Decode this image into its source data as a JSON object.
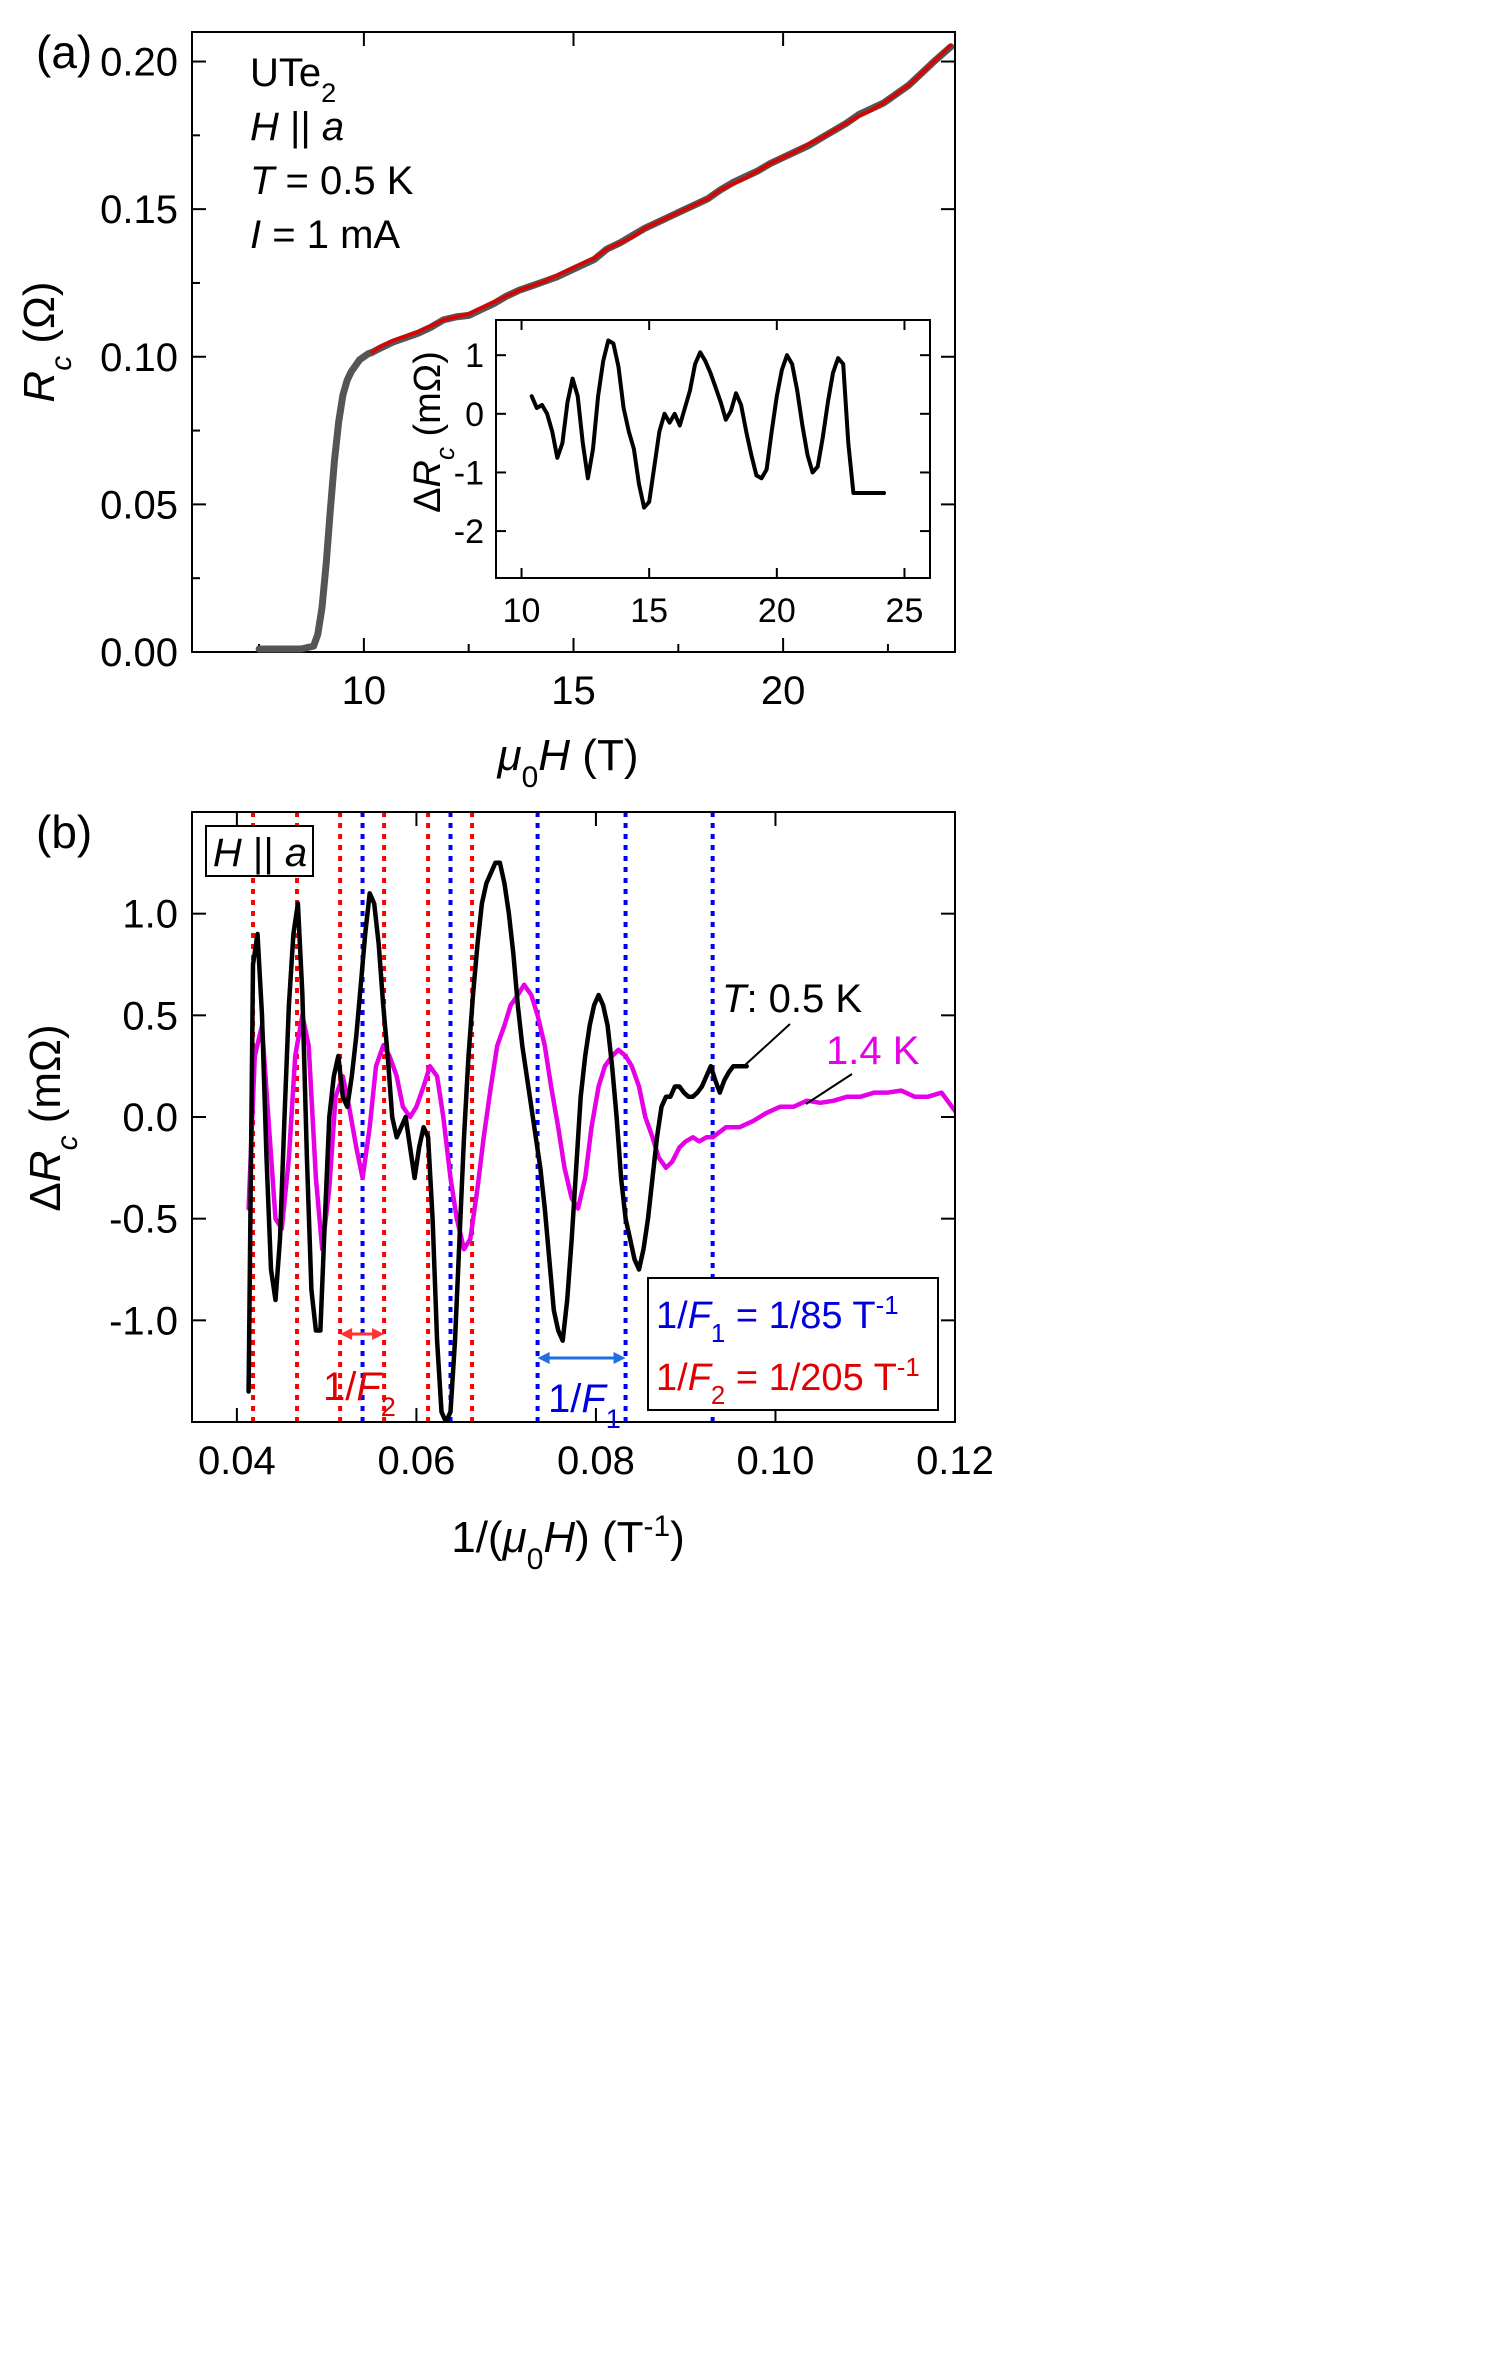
{
  "chart_data": [
    {
      "panel": "(a)",
      "type": "line",
      "xlabel": "μ0H (T)",
      "ylabel": "Rc (Ω)",
      "xlim": [
        5.9,
        24.1
      ],
      "ylim": [
        0.0,
        0.21
      ],
      "xticks": [
        "10",
        "15",
        "20"
      ],
      "yticks": [
        "0.00",
        "0.05",
        "0.10",
        "0.15",
        "0.20"
      ],
      "annotations": [
        "UTe2",
        "H || a",
        "T = 0.5 K",
        "I = 1 mA"
      ],
      "series": [
        {
          "color": "#555555",
          "x": [
            7.5,
            8.0,
            8.5,
            8.8,
            8.9,
            9.0,
            9.1,
            9.2,
            9.3,
            9.4,
            9.5,
            9.6,
            9.7,
            9.8,
            9.9,
            10.0,
            10.1,
            10.2,
            10.4,
            10.7,
            11.0,
            11.3,
            11.6,
            11.9,
            12.2,
            12.5,
            12.8,
            13.1,
            13.4,
            13.7,
            14.0,
            14.3,
            14.6,
            14.9,
            15.2,
            15.5,
            15.8,
            16.1,
            16.4,
            16.7,
            17.0,
            17.3,
            17.6,
            17.9,
            18.2,
            18.5,
            18.8,
            19.1,
            19.4,
            19.7,
            20.0,
            20.3,
            20.6,
            20.9,
            21.2,
            21.5,
            21.8,
            22.1,
            22.4,
            22.7,
            23.0,
            23.3,
            23.6,
            24.0
          ],
          "y": [
            0.001,
            0.001,
            0.001,
            0.002,
            0.006,
            0.015,
            0.03,
            0.048,
            0.065,
            0.078,
            0.087,
            0.092,
            0.095,
            0.097,
            0.099,
            0.1,
            0.101,
            0.1015,
            0.103,
            0.105,
            0.1065,
            0.108,
            0.11,
            0.1125,
            0.1135,
            0.114,
            0.116,
            0.118,
            0.1205,
            0.1225,
            0.124,
            0.1255,
            0.127,
            0.129,
            0.131,
            0.133,
            0.1365,
            0.1385,
            0.141,
            0.1435,
            0.1455,
            0.1475,
            0.1495,
            0.1515,
            0.1535,
            0.1565,
            0.159,
            0.161,
            0.163,
            0.1655,
            0.1675,
            0.1695,
            0.1715,
            0.174,
            0.1765,
            0.179,
            0.182,
            0.184,
            0.186,
            0.189,
            0.192,
            0.196,
            0.2,
            0.205
          ]
        },
        {
          "color": "#e00000",
          "x": [
            10.2,
            10.4,
            10.7,
            11.0,
            11.3,
            11.6,
            11.9,
            12.2,
            12.5,
            12.8,
            13.1,
            13.4,
            13.7,
            14.0,
            14.3,
            14.6,
            14.9,
            15.2,
            15.5,
            15.8,
            16.1,
            16.4,
            16.7,
            17.0,
            17.3,
            17.6,
            17.9,
            18.2,
            18.5,
            18.8,
            19.1,
            19.4,
            19.7,
            20.0,
            20.3,
            20.6,
            20.9,
            21.2,
            21.5,
            21.8,
            22.1,
            22.4,
            22.7,
            23.0,
            23.3,
            23.6,
            24.0
          ],
          "y": [
            0.1015,
            0.1035,
            0.1055,
            0.107,
            0.1085,
            0.1105,
            0.1125,
            0.1135,
            0.1145,
            0.1165,
            0.1185,
            0.1205,
            0.1225,
            0.124,
            0.1255,
            0.1275,
            0.1295,
            0.1315,
            0.1335,
            0.1365,
            0.1385,
            0.1405,
            0.1435,
            0.1455,
            0.1475,
            0.1495,
            0.1515,
            0.1535,
            0.1565,
            0.1585,
            0.1605,
            0.163,
            0.1655,
            0.1675,
            0.1695,
            0.172,
            0.174,
            0.1765,
            0.179,
            0.1815,
            0.1835,
            0.186,
            0.189,
            0.192,
            0.196,
            0.2,
            0.2055
          ]
        }
      ],
      "inset": {
        "xlabel": "ΔRc (mΩ)",
        "xlim": [
          9,
          26
        ],
        "ylim": [
          -2.8,
          1.6
        ],
        "xticks": [
          "10",
          "15",
          "20",
          "25"
        ],
        "yticks": [
          "-2",
          "-1",
          "0",
          "1"
        ],
        "color": "#000000",
        "x": [
          10.4,
          10.6,
          10.8,
          11.0,
          11.2,
          11.4,
          11.6,
          11.8,
          12.0,
          12.2,
          12.4,
          12.6,
          12.8,
          13.0,
          13.2,
          13.4,
          13.6,
          13.8,
          14.0,
          14.2,
          14.4,
          14.6,
          14.8,
          15.0,
          15.2,
          15.4,
          15.6,
          15.8,
          16.0,
          16.2,
          16.4,
          16.6,
          16.8,
          17.0,
          17.2,
          17.4,
          17.6,
          17.8,
          18.0,
          18.2,
          18.4,
          18.6,
          18.8,
          19.0,
          19.2,
          19.4,
          19.6,
          19.8,
          20.0,
          20.2,
          20.4,
          20.6,
          20.8,
          21.0,
          21.2,
          21.4,
          21.6,
          21.8,
          22.0,
          22.2,
          22.4,
          22.6,
          22.8,
          23.0,
          23.2,
          23.4,
          23.6,
          23.8,
          24.0,
          24.2
        ],
        "y": [
          0.3,
          0.1,
          0.15,
          0.0,
          -0.3,
          -0.75,
          -0.5,
          0.2,
          0.6,
          0.3,
          -0.5,
          -1.1,
          -0.6,
          0.3,
          0.9,
          1.25,
          1.2,
          0.8,
          0.1,
          -0.3,
          -0.6,
          -1.2,
          -1.6,
          -1.5,
          -0.9,
          -0.3,
          0.0,
          -0.15,
          0.0,
          -0.2,
          0.1,
          0.4,
          0.85,
          1.05,
          0.9,
          0.7,
          0.45,
          0.2,
          -0.1,
          0.05,
          0.35,
          0.15,
          -0.3,
          -0.7,
          -1.05,
          -1.1,
          -0.95,
          -0.3,
          0.3,
          0.75,
          1.0,
          0.85,
          0.4,
          -0.2,
          -0.7,
          -1.0,
          -0.9,
          -0.4,
          0.2,
          0.7,
          0.95,
          0.85,
          -0.5,
          -1.35,
          -1.35,
          -1.35,
          -1.35,
          -1.35,
          -1.35,
          -1.35
        ]
      }
    },
    {
      "panel": "(b)",
      "type": "line",
      "xlabel": "1/(μ0H) (T-1)",
      "ylabel": "ΔRc (mΩ)",
      "xlim": [
        0.035,
        0.12
      ],
      "ylim": [
        -1.5,
        1.5
      ],
      "xticks": [
        "0.04",
        "0.06",
        "0.08",
        "0.10",
        "0.12"
      ],
      "yticks": [
        "-1.0",
        "-0.5",
        "0.0",
        "0.5",
        "1.0"
      ],
      "box_label": "H || a",
      "series_labels": [
        "T: 0.5 K",
        "1.4 K"
      ],
      "legend": [
        "1/F1 = 1/85 T-1",
        "1/F2 = 1/205 T-1"
      ],
      "bracket_labels": [
        "1/F2",
        "1/F1"
      ],
      "red_lines": [
        0.0418,
        0.0467,
        0.0515,
        0.0564,
        0.0613,
        0.0662
      ],
      "blue_lines": [
        0.054,
        0.0638,
        0.0735,
        0.0833,
        0.093
      ],
      "series": [
        {
          "name": "T: 0.5 K",
          "color": "#000000",
          "x": [
            0.0413,
            0.0418,
            0.0423,
            0.0428,
            0.0433,
            0.0438,
            0.0443,
            0.0448,
            0.0453,
            0.0458,
            0.0463,
            0.0468,
            0.0473,
            0.0478,
            0.0483,
            0.0488,
            0.0493,
            0.0498,
            0.0503,
            0.0508,
            0.0513,
            0.0518,
            0.0523,
            0.0528,
            0.0533,
            0.0538,
            0.0543,
            0.0548,
            0.0553,
            0.0558,
            0.0563,
            0.0568,
            0.0573,
            0.0578,
            0.0583,
            0.0588,
            0.0593,
            0.0598,
            0.0603,
            0.0608,
            0.0613,
            0.0618,
            0.0623,
            0.0628,
            0.0633,
            0.0638,
            0.0643,
            0.0648,
            0.0653,
            0.0658,
            0.0663,
            0.0668,
            0.0673,
            0.0678,
            0.0683,
            0.0688,
            0.0693,
            0.0698,
            0.0703,
            0.0708,
            0.0713,
            0.0718,
            0.0723,
            0.0728,
            0.0733,
            0.0738,
            0.0743,
            0.0748,
            0.0753,
            0.0758,
            0.0763,
            0.0768,
            0.0773,
            0.0778,
            0.0783,
            0.0788,
            0.0793,
            0.0798,
            0.0803,
            0.0808,
            0.0813,
            0.0818,
            0.0823,
            0.0828,
            0.0833,
            0.0838,
            0.0843,
            0.0848,
            0.0853,
            0.0858,
            0.0863,
            0.0868,
            0.0873,
            0.0878,
            0.0883,
            0.0888,
            0.0893,
            0.0898,
            0.0903,
            0.0908,
            0.0913,
            0.0918,
            0.0923,
            0.0928,
            0.0933,
            0.0938,
            0.0943,
            0.0948,
            0.0953,
            0.0958,
            0.0963,
            0.0968
          ],
          "y": [
            -1.35,
            0.75,
            0.9,
            0.5,
            -0.2,
            -0.75,
            -0.9,
            -0.6,
            0.0,
            0.55,
            0.9,
            1.05,
            0.6,
            -0.2,
            -0.85,
            -1.05,
            -1.05,
            -0.5,
            0.0,
            0.2,
            0.3,
            0.1,
            0.05,
            0.2,
            0.4,
            0.65,
            0.9,
            1.1,
            1.05,
            0.85,
            0.55,
            0.3,
            0.0,
            -0.1,
            -0.05,
            0.0,
            -0.15,
            -0.3,
            -0.15,
            -0.05,
            -0.1,
            -0.5,
            -1.1,
            -1.45,
            -1.5,
            -1.45,
            -1.1,
            -0.6,
            -0.1,
            0.3,
            0.6,
            0.85,
            1.05,
            1.15,
            1.2,
            1.25,
            1.25,
            1.15,
            1.0,
            0.8,
            0.55,
            0.35,
            0.2,
            0.05,
            -0.1,
            -0.25,
            -0.45,
            -0.7,
            -0.95,
            -1.05,
            -1.1,
            -0.9,
            -0.6,
            -0.25,
            0.1,
            0.3,
            0.45,
            0.55,
            0.6,
            0.55,
            0.45,
            0.25,
            0.0,
            -0.3,
            -0.5,
            -0.6,
            -0.7,
            -0.75,
            -0.65,
            -0.5,
            -0.3,
            -0.1,
            0.05,
            0.1,
            0.1,
            0.15,
            0.15,
            0.12,
            0.1,
            0.1,
            0.12,
            0.15,
            0.2,
            0.25,
            0.18,
            0.12,
            0.18,
            0.22,
            0.25,
            0.25,
            0.25,
            0.25
          ]
        },
        {
          "name": "1.4 K",
          "color": "#e600e6",
          "x": [
            0.0413,
            0.042,
            0.0428,
            0.0435,
            0.0443,
            0.045,
            0.0458,
            0.0465,
            0.0473,
            0.048,
            0.0488,
            0.0495,
            0.0503,
            0.051,
            0.0518,
            0.0525,
            0.0533,
            0.054,
            0.0548,
            0.0555,
            0.0563,
            0.057,
            0.0578,
            0.0585,
            0.0593,
            0.06,
            0.0608,
            0.0615,
            0.0623,
            0.063,
            0.0638,
            0.0645,
            0.0653,
            0.066,
            0.0668,
            0.0675,
            0.0683,
            0.069,
            0.0698,
            0.0705,
            0.0713,
            0.072,
            0.0728,
            0.0735,
            0.0743,
            0.075,
            0.0758,
            0.0765,
            0.0773,
            0.078,
            0.0788,
            0.0795,
            0.0803,
            0.081,
            0.0818,
            0.0825,
            0.0833,
            0.084,
            0.0848,
            0.0855,
            0.0863,
            0.087,
            0.0878,
            0.0885,
            0.0893,
            0.09,
            0.0908,
            0.0915,
            0.0923,
            0.093,
            0.0945,
            0.096,
            0.0975,
            0.099,
            0.1005,
            0.102,
            0.1035,
            0.105,
            0.1065,
            0.108,
            0.1095,
            0.111,
            0.1125,
            0.114,
            0.1155,
            0.117,
            0.1185,
            0.12
          ],
          "y": [
            -0.45,
            0.3,
            0.45,
            0.0,
            -0.5,
            -0.55,
            -0.2,
            0.3,
            0.5,
            0.35,
            -0.3,
            -0.65,
            -0.35,
            0.1,
            0.2,
            0.05,
            -0.15,
            -0.3,
            -0.05,
            0.25,
            0.35,
            0.3,
            0.2,
            0.05,
            0.0,
            0.05,
            0.15,
            0.25,
            0.2,
            0.0,
            -0.3,
            -0.5,
            -0.65,
            -0.6,
            -0.35,
            -0.1,
            0.15,
            0.35,
            0.45,
            0.55,
            0.6,
            0.65,
            0.6,
            0.5,
            0.35,
            0.15,
            -0.05,
            -0.25,
            -0.4,
            -0.45,
            -0.3,
            -0.05,
            0.15,
            0.25,
            0.3,
            0.33,
            0.3,
            0.25,
            0.15,
            0.0,
            -0.1,
            -0.2,
            -0.25,
            -0.22,
            -0.15,
            -0.12,
            -0.1,
            -0.12,
            -0.1,
            -0.1,
            -0.05,
            -0.05,
            -0.02,
            0.02,
            0.05,
            0.05,
            0.08,
            0.07,
            0.08,
            0.1,
            0.1,
            0.12,
            0.12,
            0.13,
            0.1,
            0.1,
            0.12,
            0.03
          ]
        }
      ]
    }
  ]
}
